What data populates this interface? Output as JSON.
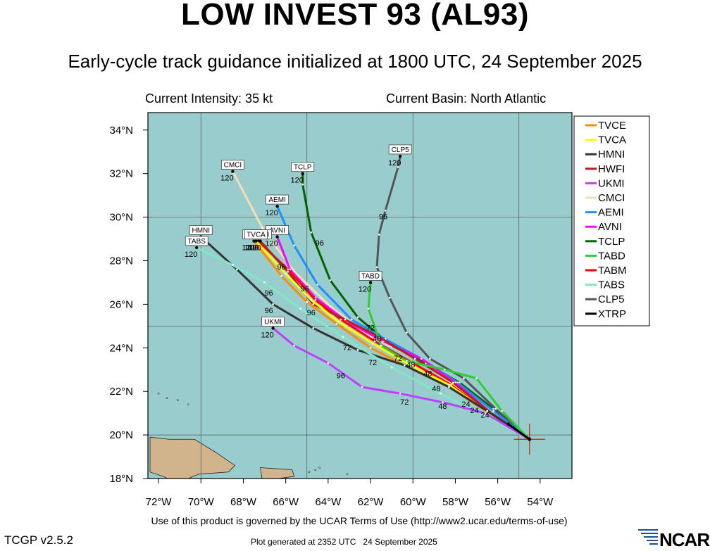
{
  "header": {
    "title": "LOW INVEST 93 (AL93)",
    "subtitle": "Early-cycle track guidance initialized at 1800 UTC, 24 September 2025",
    "intensity": "Current Intensity: 35 kt",
    "basin": "Current Basin: North Atlantic"
  },
  "footer": {
    "terms": "Use of this product is governed by the UCAR Terms of Use (http://www2.ucar.edu/terms-of-use)",
    "version": "TCGP v2.5.2",
    "generated": "Plot generated at 2352 UTC   24 September 2025",
    "logo_text": "NCAR"
  },
  "map": {
    "lon_range": [
      -72.5,
      -52.5
    ],
    "lat_range": [
      18,
      34.8
    ],
    "lon_ticks": [
      -72,
      -70,
      -68,
      -66,
      -64,
      -62,
      -60,
      -58,
      -56,
      -54
    ],
    "lon_tick_labels": [
      "72°W",
      "70°W",
      "68°W",
      "66°W",
      "64°W",
      "62°W",
      "60°W",
      "58°W",
      "56°W",
      "54°W"
    ],
    "lat_ticks": [
      18,
      20,
      22,
      24,
      26,
      28,
      30,
      32,
      34
    ],
    "lat_tick_labels": [
      "18°N",
      "20°N",
      "22°N",
      "24°N",
      "26°N",
      "28°N",
      "30°N",
      "32°N",
      "34°N"
    ],
    "grid_lons": [
      -70,
      -65,
      -60,
      -55
    ],
    "grid_lats": [
      20,
      25,
      30
    ],
    "ocean_color": "#99cccc",
    "land_color": "#d2b48c",
    "grid_color": "#555555",
    "current_position": {
      "lon": -54.5,
      "lat": 19.8
    }
  },
  "legend": [
    {
      "name": "TVCE",
      "color": "#ff8c00"
    },
    {
      "name": "TVCA",
      "color": "#ffff00"
    },
    {
      "name": "HMNI",
      "color": "#333333"
    },
    {
      "name": "HWFI",
      "color": "#b22222"
    },
    {
      "name": "UKMI",
      "color": "#bf3eff"
    },
    {
      "name": "CMCI",
      "color": "#f5deb3"
    },
    {
      "name": "AEMI",
      "color": "#1e90ff"
    },
    {
      "name": "AVNI",
      "color": "#ff00ff"
    },
    {
      "name": "TCLP",
      "color": "#006400"
    },
    {
      "name": "TABD",
      "color": "#32cd32"
    },
    {
      "name": "TABM",
      "color": "#ff0000"
    },
    {
      "name": "TABS",
      "color": "#7fe8c4"
    },
    {
      "name": "CLP5",
      "color": "#555555"
    },
    {
      "name": "XTRP",
      "color": "#000000"
    }
  ],
  "tracks": [
    {
      "name": "CMCI",
      "color": "#f5deb3",
      "end_label": "120",
      "points": [
        [
          -54.5,
          19.8
        ],
        [
          -56.3,
          21.0
        ],
        [
          -58.2,
          22.4
        ],
        [
          -60.0,
          23.6
        ],
        [
          -62.0,
          24.5
        ],
        [
          -63.9,
          25.9
        ],
        [
          -65.6,
          27.5
        ],
        [
          -67.1,
          29.5
        ],
        [
          -68.5,
          32.1
        ]
      ]
    },
    {
      "name": "TCLP",
      "color": "#006400",
      "end_label": "120",
      "points": [
        [
          -54.5,
          19.8
        ],
        [
          -56.2,
          21.2
        ],
        [
          -57.8,
          22.4
        ],
        [
          -59.4,
          23.3
        ],
        [
          -61.0,
          24.1
        ],
        [
          -62.6,
          25.4
        ],
        [
          -63.9,
          27.1
        ],
        [
          -64.8,
          29.3
        ],
        [
          -65.2,
          31.5
        ],
        [
          -65.2,
          32.0
        ]
      ]
    },
    {
      "name": "CLP5",
      "color": "#555555",
      "end_label": "120",
      "points": [
        [
          -54.5,
          19.8
        ],
        [
          -56.1,
          21.2
        ],
        [
          -57.6,
          22.6
        ],
        [
          -59.2,
          23.5
        ],
        [
          -60.3,
          24.7
        ],
        [
          -61.1,
          26.3
        ],
        [
          -61.7,
          27.7
        ],
        [
          -61.6,
          29.2
        ],
        [
          -61.3,
          30.3
        ],
        [
          -60.7,
          32.3
        ],
        [
          -60.6,
          32.8
        ]
      ]
    },
    {
      "name": "AEMI",
      "color": "#1e90ff",
      "end_label": "120",
      "points": [
        [
          -54.5,
          19.8
        ],
        [
          -56.2,
          21.1
        ],
        [
          -57.9,
          22.4
        ],
        [
          -59.6,
          23.5
        ],
        [
          -61.3,
          24.4
        ],
        [
          -62.9,
          25.3
        ],
        [
          -64.5,
          26.9
        ],
        [
          -65.6,
          28.7
        ],
        [
          -66.4,
          30.5
        ]
      ]
    },
    {
      "name": "AVNI",
      "color": "#ff00ff",
      "end_label": "120",
      "points": [
        [
          -54.5,
          19.8
        ],
        [
          -56.3,
          21.0
        ],
        [
          -58.0,
          22.4
        ],
        [
          -59.6,
          23.5
        ],
        [
          -61.4,
          24.3
        ],
        [
          -63.1,
          25.2
        ],
        [
          -64.6,
          26.3
        ],
        [
          -65.8,
          27.6
        ],
        [
          -66.4,
          29.1
        ]
      ]
    },
    {
      "name": "TABM",
      "color": "#ff0000",
      "end_label": "120",
      "points": [
        [
          -54.5,
          19.8
        ],
        [
          -56.4,
          21.0
        ],
        [
          -58.2,
          22.3
        ],
        [
          -60.0,
          23.3
        ],
        [
          -61.8,
          24.3
        ],
        [
          -63.4,
          25.3
        ],
        [
          -64.6,
          26.2
        ],
        [
          -65.9,
          27.6
        ],
        [
          -67.3,
          28.9
        ]
      ]
    },
    {
      "name": "HWFI",
      "color": "#b22222",
      "end_label": "120",
      "points": [
        [
          -54.5,
          19.8
        ],
        [
          -56.3,
          21.0
        ],
        [
          -58.1,
          22.4
        ],
        [
          -59.9,
          23.5
        ],
        [
          -61.6,
          24.5
        ],
        [
          -63.2,
          25.3
        ],
        [
          -64.7,
          26.0
        ],
        [
          -65.9,
          27.5
        ],
        [
          -67.2,
          28.9
        ]
      ]
    },
    {
      "name": "TVCE",
      "color": "#ff8c00",
      "end_label": "120",
      "points": [
        [
          -54.5,
          19.8
        ],
        [
          -56.4,
          21.0
        ],
        [
          -58.3,
          22.2
        ],
        [
          -60.2,
          23.1
        ],
        [
          -62.0,
          24.0
        ],
        [
          -63.6,
          25.1
        ],
        [
          -65.0,
          26.1
        ],
        [
          -66.2,
          27.3
        ],
        [
          -67.5,
          28.9
        ]
      ]
    },
    {
      "name": "TVCA",
      "color": "#ffff00",
      "end_label": "120",
      "points": [
        [
          -54.5,
          19.8
        ],
        [
          -56.4,
          21.0
        ],
        [
          -58.3,
          22.3
        ],
        [
          -60.1,
          23.2
        ],
        [
          -61.9,
          24.2
        ],
        [
          -63.5,
          25.2
        ],
        [
          -64.8,
          26.2
        ],
        [
          -66.0,
          27.4
        ],
        [
          -67.4,
          28.9
        ]
      ]
    },
    {
      "name": "TABD",
      "color": "#32cd32",
      "end_label": "120",
      "points": [
        [
          -54.5,
          19.8
        ],
        [
          -55.8,
          21.1
        ],
        [
          -57.0,
          22.6
        ],
        [
          -58.5,
          23.0
        ],
        [
          -60.3,
          23.4
        ],
        [
          -61.5,
          24.1
        ],
        [
          -62.1,
          25.8
        ],
        [
          -62.0,
          27.0
        ]
      ]
    },
    {
      "name": "HMNI",
      "color": "#333333",
      "end_label": "120",
      "points": [
        [
          -54.5,
          19.8
        ],
        [
          -56.5,
          21.1
        ],
        [
          -58.3,
          22.2
        ],
        [
          -60.4,
          23.2
        ],
        [
          -62.6,
          23.9
        ],
        [
          -64.7,
          24.9
        ],
        [
          -66.6,
          26.0
        ],
        [
          -68.3,
          27.6
        ],
        [
          -70.0,
          29.1
        ]
      ]
    },
    {
      "name": "TABS",
      "color": "#7fe8c4",
      "end_label": "120",
      "points": [
        [
          -54.5,
          19.8
        ],
        [
          -56.6,
          20.9
        ],
        [
          -58.7,
          21.9
        ],
        [
          -61.0,
          23.1
        ],
        [
          -63.3,
          24.5
        ],
        [
          -65.3,
          25.8
        ],
        [
          -67.0,
          27.0
        ],
        [
          -68.5,
          27.8
        ],
        [
          -70.2,
          28.6
        ]
      ]
    },
    {
      "name": "UKMI",
      "color": "#bf3eff",
      "end_label": "120",
      "points": [
        [
          -54.5,
          19.8
        ],
        [
          -56.6,
          21.0
        ],
        [
          -58.6,
          21.5
        ],
        [
          -60.6,
          21.9
        ],
        [
          -62.4,
          22.2
        ],
        [
          -64.0,
          23.3
        ],
        [
          -65.6,
          24.1
        ],
        [
          -66.6,
          24.9
        ]
      ]
    },
    {
      "name": "XTRP",
      "color": "#000000",
      "end_label": "",
      "points": [
        [
          -54.5,
          19.8
        ],
        [
          -55.5,
          20.5
        ]
      ]
    }
  ],
  "track_hour_labels": [
    {
      "text": "24",
      "lon": -57.5,
      "lat": 21.3
    },
    {
      "text": "24",
      "lon": -57.1,
      "lat": 21.0
    },
    {
      "text": "24",
      "lon": -56.6,
      "lat": 20.8
    },
    {
      "text": "48",
      "lon": -58.9,
      "lat": 22.0
    },
    {
      "text": "48",
      "lon": -59.3,
      "lat": 22.7
    },
    {
      "text": "48",
      "lon": -60.1,
      "lat": 23.1
    },
    {
      "text": "48",
      "lon": -58.6,
      "lat": 21.2
    },
    {
      "text": "48",
      "lon": -61.7,
      "lat": 24.3
    },
    {
      "text": "72",
      "lon": -60.7,
      "lat": 23.4
    },
    {
      "text": "72",
      "lon": -61.9,
      "lat": 23.2
    },
    {
      "text": "72",
      "lon": -60.4,
      "lat": 21.4
    },
    {
      "text": "72",
      "lon": -63.1,
      "lat": 23.9
    },
    {
      "text": "72",
      "lon": -62.0,
      "lat": 24.8
    },
    {
      "text": "96",
      "lon": -63.4,
      "lat": 22.6
    },
    {
      "text": "96",
      "lon": -66.8,
      "lat": 25.6
    },
    {
      "text": "96",
      "lon": -66.8,
      "lat": 26.4
    },
    {
      "text": "96",
      "lon": -64.8,
      "lat": 25.5
    },
    {
      "text": "96",
      "lon": -65.1,
      "lat": 26.6
    },
    {
      "text": "96",
      "lon": -61.4,
      "lat": 29.9
    },
    {
      "text": "96",
      "lon": -66.2,
      "lat": 27.6
    },
    {
      "text": "96",
      "lon": -64.4,
      "lat": 28.7
    }
  ],
  "land_shapes": [
    {
      "name": "hispaniola",
      "points": [
        [
          -72.4,
          19.9
        ],
        [
          -71.5,
          19.8
        ],
        [
          -70.3,
          19.8
        ],
        [
          -69.3,
          19.2
        ],
        [
          -68.4,
          18.6
        ],
        [
          -68.7,
          18.3
        ],
        [
          -70.1,
          18.2
        ],
        [
          -71.1,
          17.8
        ],
        [
          -71.8,
          18.1
        ],
        [
          -72.4,
          18.3
        ]
      ]
    },
    {
      "name": "puerto-rico",
      "points": [
        [
          -67.2,
          18.5
        ],
        [
          -65.7,
          18.4
        ],
        [
          -65.6,
          18.1
        ],
        [
          -67.1,
          17.9
        ]
      ]
    }
  ]
}
